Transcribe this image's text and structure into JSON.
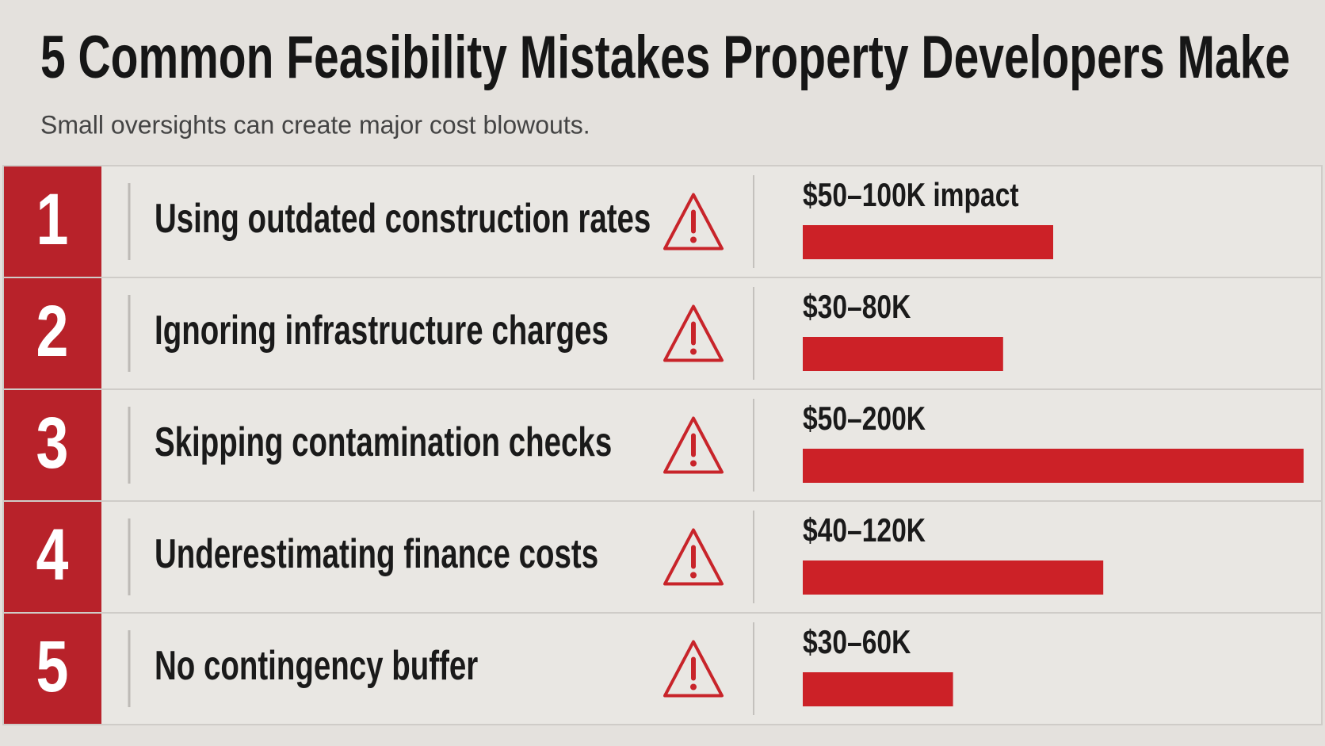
{
  "header": {
    "title": "5 Common Feasibility Mistakes Property Developers Make",
    "subtitle": "Small oversights can create major cost blowouts."
  },
  "rows": [
    {
      "number": 1,
      "text": "Using outdated construction rates",
      "impact_label": "$50–100K impact",
      "low": 50,
      "high": 100
    },
    {
      "number": 2,
      "text": "Ignoring infrastructure charges",
      "impact_label": "$30–80K",
      "low": 30,
      "high": 80
    },
    {
      "number": 3,
      "text": "Skipping contamination checks",
      "impact_label": "$50–200K",
      "low": 50,
      "high": 200
    },
    {
      "number": 4,
      "text": "Underestimating finance costs",
      "impact_label": "$40–120K",
      "low": 40,
      "high": 120
    },
    {
      "number": 5,
      "text": "No contingency buffer",
      "impact_label": "$30–60K",
      "low": 30,
      "high": 60
    }
  ],
  "bar_color": "#cc2127",
  "number_color": "#b8222a"
}
